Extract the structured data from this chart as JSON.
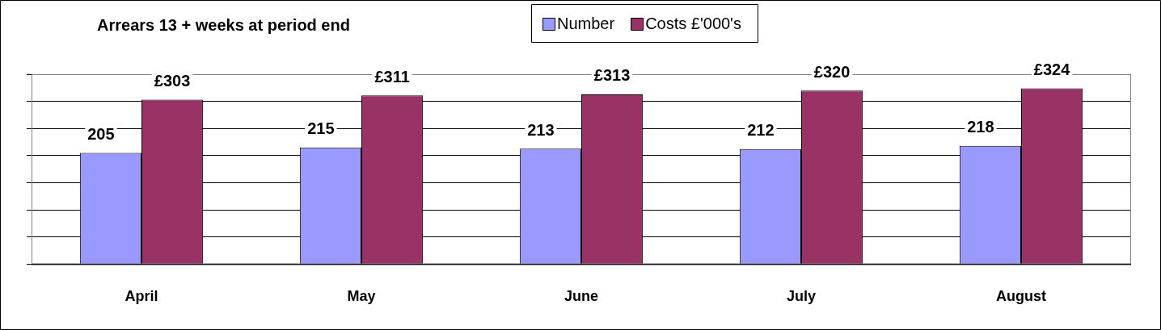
{
  "chart_data": {
    "type": "bar",
    "title": "Arrears 13 + weeks at period end",
    "categories": [
      "April",
      "May",
      "June",
      "July",
      "August"
    ],
    "series": [
      {
        "name": "Number",
        "color": "#9999ff",
        "values": [
          205,
          215,
          213,
          212,
          218
        ],
        "value_labels": [
          "205",
          "215",
          "213",
          "212",
          "218"
        ]
      },
      {
        "name": "Costs £'000's",
        "color": "#993366",
        "values": [
          303,
          311,
          313,
          320,
          324
        ],
        "value_labels": [
          "£303",
          "£311",
          "£313",
          "£320",
          "£324"
        ]
      }
    ],
    "ylim": [
      0,
      350
    ],
    "yticks": [
      {
        "value": 0,
        "label": null
      },
      {
        "value": 50,
        "label": null
      },
      {
        "value": 100,
        "label": null
      },
      {
        "value": 150,
        "label": null
      },
      {
        "value": 200,
        "label": null
      },
      {
        "value": 250,
        "label": null
      },
      {
        "value": 300,
        "label": null
      },
      {
        "value": 350,
        "label": null
      }
    ],
    "grid": "y",
    "legend": "top",
    "tick_labels": "x"
  }
}
